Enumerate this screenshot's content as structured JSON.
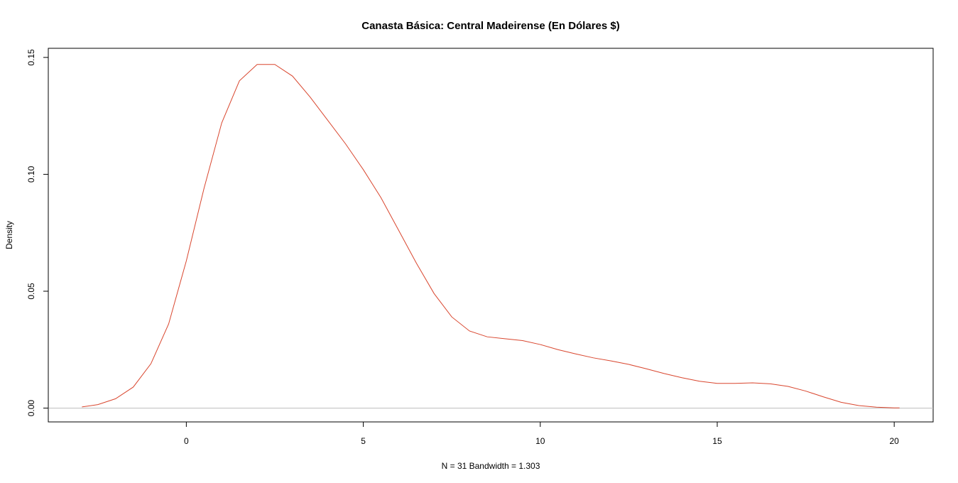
{
  "chart_data": {
    "type": "line",
    "title": "Canasta Básica: Central Madeirense (En Dólares $)",
    "xlabel": "N = 31   Bandwidth = 1.303",
    "ylabel": "Density",
    "xlim": [
      -3.9,
      21.1
    ],
    "ylim": [
      -0.0059,
      0.1539
    ],
    "x_ticks": [
      0,
      5,
      10,
      15,
      20
    ],
    "x_tick_labels": [
      "0",
      "5",
      "10",
      "15",
      "20"
    ],
    "y_ticks": [
      0.0,
      0.05,
      0.1,
      0.15
    ],
    "y_tick_labels": [
      "0.00",
      "0.05",
      "0.10",
      "0.15"
    ],
    "baseline": 0,
    "grid": false,
    "series": [
      {
        "color": "#d9462e",
        "x": [
          -2.95,
          -2.5,
          -2.0,
          -1.5,
          -1.0,
          -0.5,
          0.0,
          0.5,
          1.0,
          1.5,
          2.0,
          2.5,
          3.0,
          3.5,
          4.0,
          4.5,
          5.0,
          5.5,
          6.0,
          6.5,
          7.0,
          7.5,
          8.0,
          8.5,
          9.0,
          9.5,
          10.0,
          10.5,
          11.0,
          11.5,
          12.0,
          12.5,
          13.0,
          13.5,
          14.0,
          14.5,
          15.0,
          15.5,
          16.0,
          16.5,
          17.0,
          17.5,
          18.0,
          18.5,
          19.0,
          19.5,
          20.0,
          20.15
        ],
        "values": [
          0.0005,
          0.0015,
          0.004,
          0.009,
          0.019,
          0.036,
          0.063,
          0.094,
          0.122,
          0.14,
          0.147,
          0.147,
          0.142,
          0.133,
          0.123,
          0.113,
          0.102,
          0.09,
          0.076,
          0.062,
          0.049,
          0.039,
          0.033,
          0.0305,
          0.0297,
          0.0289,
          0.0272,
          0.025,
          0.0232,
          0.0215,
          0.0202,
          0.0187,
          0.0168,
          0.0148,
          0.013,
          0.0115,
          0.0106,
          0.0106,
          0.0108,
          0.0104,
          0.0093,
          0.0073,
          0.0048,
          0.0025,
          0.0011,
          0.0004,
          0.0001,
          0.0001
        ]
      }
    ]
  }
}
